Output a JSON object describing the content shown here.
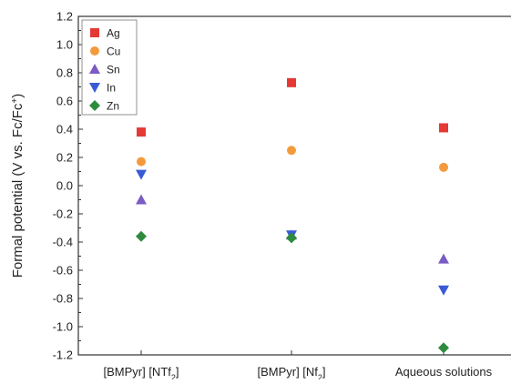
{
  "chart_data": {
    "type": "scatter",
    "categories": [
      "[BMPyr] [NTf",
      "[BMPyr] [Nf",
      "Aqueous solutions"
    ],
    "category_subscripts": [
      "2",
      "2",
      ""
    ],
    "category_suffix": "]",
    "ylabel": "Formal potential (V vs. Fc/Fc",
    "ylabel_superscript": "+",
    "ylabel_suffix": ")",
    "ylim": [
      -1.2,
      1.2
    ],
    "yticks": [
      "-1.2",
      "-1.0",
      "-0.8",
      "-0.6",
      "-0.4",
      "-0.2",
      "0.0",
      "0.2",
      "0.4",
      "0.6",
      "0.8",
      "1.0",
      "1.2"
    ],
    "legend_position": "top-left",
    "series": [
      {
        "name": "Ag",
        "color": "#e53935",
        "marker": "square",
        "values": [
          0.38,
          0.73,
          0.41
        ]
      },
      {
        "name": "Cu",
        "color": "#f39a3c",
        "marker": "circle",
        "values": [
          0.17,
          0.25,
          0.13
        ]
      },
      {
        "name": "Sn",
        "color": "#7b5cc4",
        "marker": "triangle-up",
        "values": [
          -0.1,
          -0.35,
          -0.52
        ]
      },
      {
        "name": "In",
        "color": "#3a5bd6",
        "marker": "triangle-down",
        "values": [
          0.08,
          -0.35,
          -0.74
        ]
      },
      {
        "name": "Zn",
        "color": "#2e8b3e",
        "marker": "diamond",
        "values": [
          -0.36,
          -0.37,
          -1.15
        ]
      }
    ]
  }
}
